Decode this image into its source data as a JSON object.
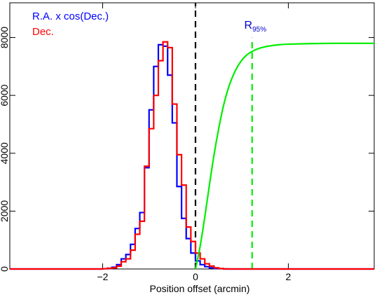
{
  "chart_data": {
    "type": "line",
    "title": "",
    "xlabel": "Position offset (arcmin)",
    "ylabel": "",
    "xlim": [
      -4.0,
      3.85
    ],
    "ylim": [
      0,
      9200
    ],
    "x_ticks": [
      -2,
      0,
      2
    ],
    "x_tick_labels": [
      "−2",
      "0",
      "2"
    ],
    "y_ticks": [
      0,
      2000,
      4000,
      6000,
      8000
    ],
    "y_tick_labels": [
      "0",
      "2000",
      "4000",
      "6000",
      "8000"
    ],
    "grid": false,
    "legend_position": "top-left",
    "bin_width": 0.1,
    "histograms": [
      {
        "name": "R.A. x cos(Dec.)",
        "color": "#0000ff",
        "bin_edges_start": -2.0,
        "counts": [
          10,
          25,
          60,
          150,
          350,
          500,
          850,
          1400,
          1950,
          3500,
          5500,
          7000,
          7750,
          7700,
          6700,
          5050,
          2850,
          1750,
          1050,
          550,
          280,
          150,
          80,
          40,
          20,
          10
        ]
      },
      {
        "name": "Dec.",
        "color": "#ff0000",
        "bin_edges_start": -2.0,
        "counts": [
          10,
          20,
          40,
          100,
          250,
          350,
          650,
          1200,
          1650,
          3550,
          4850,
          6000,
          7200,
          7850,
          7650,
          5700,
          3950,
          2900,
          1450,
          950,
          550,
          350,
          180,
          100,
          40,
          15,
          5
        ]
      }
    ],
    "cumulative_curve": {
      "color": "#00ee00",
      "x": [
        0.0,
        0.1,
        0.2,
        0.3,
        0.4,
        0.5,
        0.6,
        0.7,
        0.8,
        0.9,
        1.0,
        1.1,
        1.2,
        1.3,
        1.4,
        1.5,
        1.6,
        1.8,
        2.0,
        2.5,
        3.0,
        3.5,
        3.85
      ],
      "y": [
        0,
        780,
        1790,
        2900,
        3950,
        4850,
        5620,
        6210,
        6650,
        6980,
        7220,
        7390,
        7500,
        7580,
        7640,
        7680,
        7710,
        7750,
        7770,
        7790,
        7800,
        7800,
        7800
      ]
    },
    "reference_lines": [
      {
        "type": "vertical",
        "x": 0.0,
        "color": "#000000",
        "style": "dashed"
      },
      {
        "type": "vertical",
        "x": 1.22,
        "color": "#00ee00",
        "style": "dashed"
      }
    ],
    "annotations": [
      {
        "text": "R",
        "subscript": "95%",
        "x": 1.05,
        "y": 8300,
        "color": "#0000cc"
      }
    ],
    "legend": [
      {
        "label": "R.A. x cos(Dec.)",
        "color": "#0000ff"
      },
      {
        "label": "Dec.",
        "color": "#ff0000"
      }
    ]
  }
}
